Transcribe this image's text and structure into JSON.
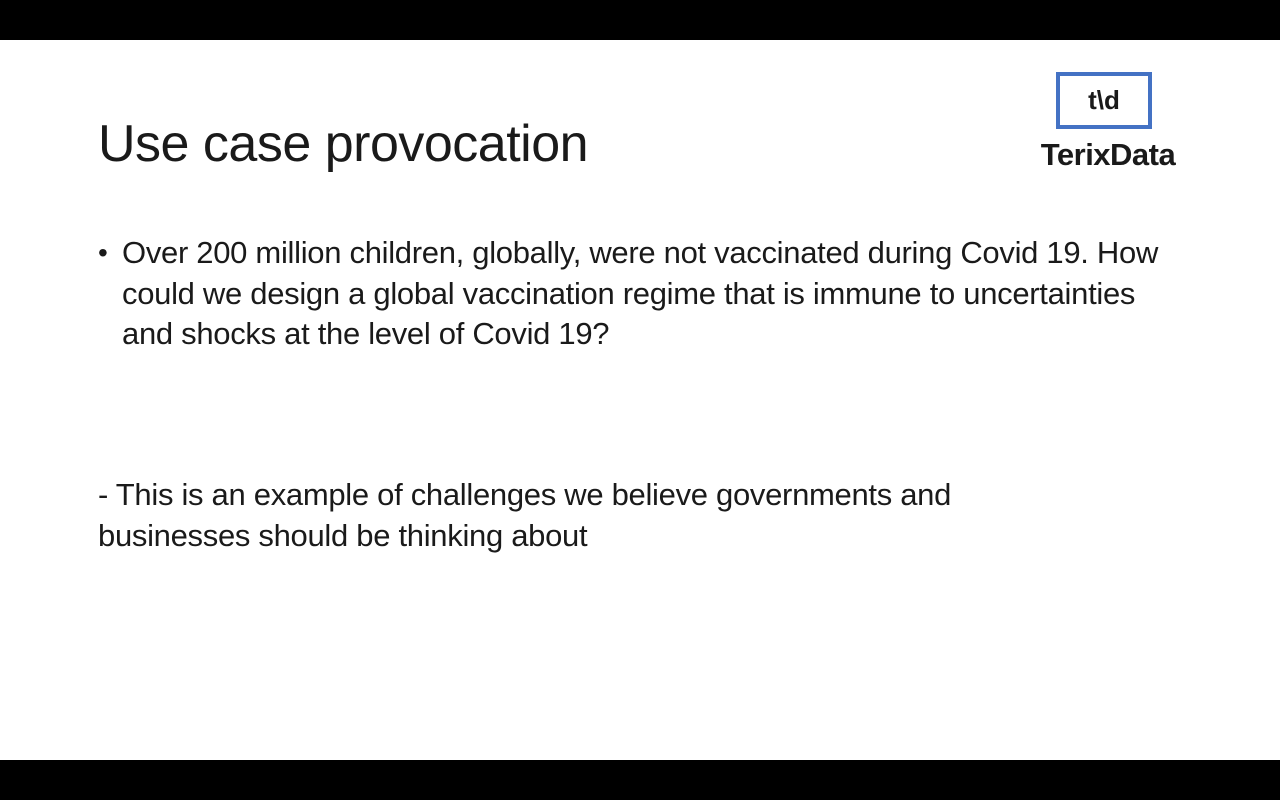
{
  "slide": {
    "title": "Use case provocation",
    "logo": {
      "mark": "t\\d",
      "wordmark": "TerixData",
      "accent_color": "#4472c4"
    },
    "bullets": [
      {
        "marker": "•",
        "text": "Over 200 million children, globally, were not vaccinated during Covid 19. How could we design a global vaccination regime that is immune to uncertainties and shocks at the level of Covid 19?"
      }
    ],
    "note": "- This is an example of challenges we believe governments and businesses should be thinking about"
  }
}
